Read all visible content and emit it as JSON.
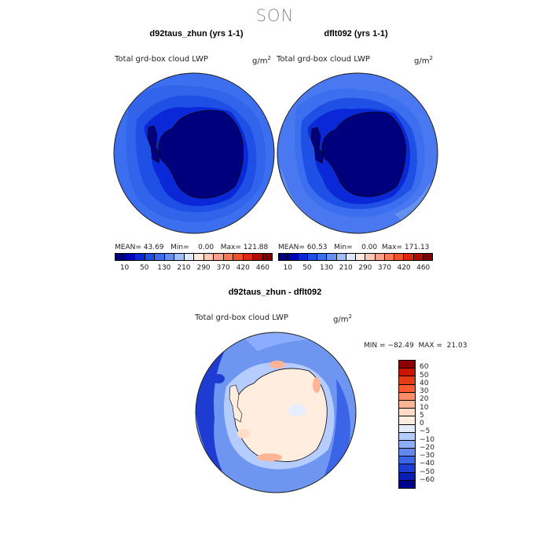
{
  "season": "SON",
  "panels": [
    {
      "title": "d92taus_zhun (yrs 1-1)",
      "variable": "Total grd-box cloud LWP",
      "units": "g/m",
      "units_exp": "2",
      "mean_label": "MEAN=",
      "mean": "43.69",
      "min_label": "Min=",
      "min": "0.00",
      "max_label": "Max=",
      "max": "121.88"
    },
    {
      "title": "dflt092 (yrs 1-1)",
      "variable": "Total grd-box cloud LWP",
      "units": "g/m",
      "units_exp": "2",
      "mean_label": "MEAN=",
      "mean": "60.53",
      "min_label": "Min=",
      "min": "0.00",
      "max_label": "Max=",
      "max": "171.13"
    }
  ],
  "diff": {
    "title": "d92taus_zhun - dflt092",
    "variable": "Total grd-box cloud LWP",
    "units": "g/m",
    "units_exp": "2",
    "minmax_text": "MIN = −82.49  MAX =  21.03"
  },
  "colorbar_top": {
    "colors": [
      "#00007f",
      "#0000b4",
      "#0a28d8",
      "#1e50e6",
      "#3c6ef0",
      "#6490f0",
      "#a0beff",
      "#dce8ff",
      "#ffe8dc",
      "#ffc8b4",
      "#ffa08c",
      "#ff7850",
      "#f0502a",
      "#dc2810",
      "#b40a00",
      "#7f0000"
    ],
    "tick_labels": [
      "10",
      "50",
      "130",
      "210",
      "290",
      "370",
      "420",
      "460"
    ]
  },
  "colorbar_diff": {
    "colors_top_to_bottom": [
      "#8c0000",
      "#c81400",
      "#e63c14",
      "#ff5a32",
      "#ff8c64",
      "#ffb496",
      "#ffdcc8",
      "#ffeee0",
      "#e4ecff",
      "#b4ccff",
      "#8cacff",
      "#6488f0",
      "#3c64e6",
      "#1e3cd2",
      "#0a1eb4",
      "#00008c"
    ],
    "tick_labels": [
      "60",
      "50",
      "40",
      "30",
      "20",
      "10",
      "5",
      "0",
      "−5",
      "−10",
      "−20",
      "−30",
      "−40",
      "−50",
      "−60"
    ]
  },
  "maps": {
    "colors": {
      "ocean_panel1": "#3c6ef0",
      "ocean_panel2": "#4a78f0",
      "inner_ring": "#1e50e6",
      "continent": "#00007f",
      "diff_ocean": "#6e96f0",
      "diff_land": "#ffeee0"
    }
  }
}
